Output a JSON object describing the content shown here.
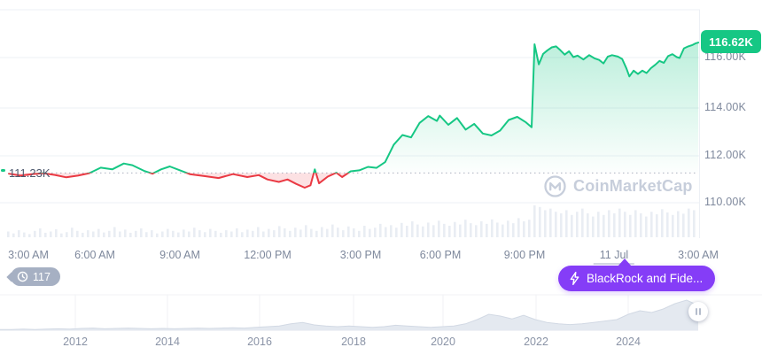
{
  "price_chart": {
    "current_price_badge": "116.62K",
    "baseline_label": "111.23K",
    "watermark": "CoinMarketCap"
  },
  "annotations": {
    "history_count": "117",
    "news_label": "BlackRock and Fide..."
  },
  "colors": {
    "up_green": "#16c784",
    "down_red": "#ea3943",
    "news_purple": "#853df7",
    "history_gray": "#a6b0c3",
    "axis_text": "#7e889c",
    "gridline": "#edf0f5"
  },
  "chart_data": {
    "type": "line",
    "title": "",
    "x_unit": "hours since 3:00 AM",
    "y_unit": "price (thousands USD)",
    "baseline": 111.23,
    "ylim": [
      109.8,
      118.0
    ],
    "y_ticks": [
      "116.00K",
      "114.00K",
      "112.00K",
      "110.00K"
    ],
    "x_ticks": [
      "3:00 AM",
      "6:00 AM",
      "9:00 AM",
      "12:00 PM",
      "3:00 PM",
      "6:00 PM",
      "9:00 PM",
      "11 Jul",
      "3:00 AM"
    ],
    "points": [
      [
        0,
        111.2
      ],
      [
        0.4,
        111.12
      ],
      [
        0.8,
        111.18
      ],
      [
        1.2,
        111.22
      ],
      [
        1.6,
        111.15
      ],
      [
        2.0,
        111.05
      ],
      [
        2.4,
        111.12
      ],
      [
        2.8,
        111.22
      ],
      [
        3.2,
        111.45
      ],
      [
        3.6,
        111.38
      ],
      [
        4.0,
        111.62
      ],
      [
        4.3,
        111.55
      ],
      [
        4.7,
        111.32
      ],
      [
        5.0,
        111.2
      ],
      [
        5.3,
        111.38
      ],
      [
        5.6,
        111.5
      ],
      [
        6.0,
        111.32
      ],
      [
        6.3,
        111.18
      ],
      [
        6.8,
        111.1
      ],
      [
        7.3,
        111.02
      ],
      [
        7.8,
        111.18
      ],
      [
        8.3,
        111.06
      ],
      [
        8.7,
        111.14
      ],
      [
        9.0,
        110.96
      ],
      [
        9.4,
        110.86
      ],
      [
        9.7,
        110.96
      ],
      [
        10.0,
        110.78
      ],
      [
        10.3,
        110.62
      ],
      [
        10.5,
        110.72
      ],
      [
        10.65,
        111.38
      ],
      [
        10.8,
        110.8
      ],
      [
        11.1,
        111.08
      ],
      [
        11.4,
        111.24
      ],
      [
        11.6,
        111.06
      ],
      [
        11.9,
        111.3
      ],
      [
        12.2,
        111.34
      ],
      [
        12.5,
        111.48
      ],
      [
        12.8,
        111.44
      ],
      [
        13.1,
        111.68
      ],
      [
        13.4,
        112.4
      ],
      [
        13.7,
        112.8
      ],
      [
        14.0,
        112.7
      ],
      [
        14.3,
        113.3
      ],
      [
        14.6,
        113.58
      ],
      [
        14.9,
        113.38
      ],
      [
        15.0,
        113.6
      ],
      [
        15.3,
        113.22
      ],
      [
        15.6,
        113.5
      ],
      [
        15.9,
        113.02
      ],
      [
        16.2,
        113.26
      ],
      [
        16.5,
        112.86
      ],
      [
        16.8,
        112.78
      ],
      [
        17.1,
        112.98
      ],
      [
        17.4,
        113.42
      ],
      [
        17.7,
        113.55
      ],
      [
        18.0,
        113.32
      ],
      [
        18.2,
        113.12
      ],
      [
        18.3,
        116.55
      ],
      [
        18.45,
        115.72
      ],
      [
        18.6,
        116.15
      ],
      [
        18.75,
        116.3
      ],
      [
        18.9,
        116.42
      ],
      [
        19.05,
        116.46
      ],
      [
        19.2,
        116.3
      ],
      [
        19.35,
        116.12
      ],
      [
        19.5,
        116.26
      ],
      [
        19.65,
        116.02
      ],
      [
        19.8,
        116.08
      ],
      [
        20.0,
        115.92
      ],
      [
        20.2,
        116.1
      ],
      [
        20.4,
        115.96
      ],
      [
        20.55,
        115.9
      ],
      [
        20.7,
        115.76
      ],
      [
        20.85,
        116.04
      ],
      [
        21.0,
        116.1
      ],
      [
        21.2,
        116.04
      ],
      [
        21.35,
        115.94
      ],
      [
        21.5,
        115.55
      ],
      [
        21.6,
        115.22
      ],
      [
        21.75,
        115.46
      ],
      [
        21.9,
        115.32
      ],
      [
        22.05,
        115.46
      ],
      [
        22.2,
        115.36
      ],
      [
        22.35,
        115.56
      ],
      [
        22.5,
        115.7
      ],
      [
        22.65,
        115.86
      ],
      [
        22.8,
        115.78
      ],
      [
        22.95,
        116.06
      ],
      [
        23.1,
        116.14
      ],
      [
        23.25,
        116.02
      ],
      [
        23.35,
        115.98
      ],
      [
        23.5,
        116.38
      ],
      [
        23.65,
        116.46
      ],
      [
        23.8,
        116.52
      ],
      [
        23.9,
        116.58
      ],
      [
        24.0,
        116.62
      ]
    ],
    "volume_bars": [
      0.18,
      0.12,
      0.22,
      0.15,
      0.1,
      0.2,
      0.28,
      0.14,
      0.18,
      0.25,
      0.12,
      0.16,
      0.3,
      0.2,
      0.14,
      0.22,
      0.18,
      0.26,
      0.15,
      0.2,
      0.32,
      0.18,
      0.24,
      0.14,
      0.2,
      0.28,
      0.16,
      0.22,
      0.12,
      0.18,
      0.26,
      0.2,
      0.15,
      0.24,
      0.18,
      0.3,
      0.22,
      0.16,
      0.26,
      0.2,
      0.14,
      0.22,
      0.18,
      0.28,
      0.16,
      0.24,
      0.2,
      0.32,
      0.18,
      0.26,
      0.22,
      0.35,
      0.28,
      0.2,
      0.3,
      0.24,
      0.38,
      0.26,
      0.2,
      0.32,
      0.26,
      0.4,
      0.3,
      0.22,
      0.34,
      0.28,
      0.2,
      0.36,
      0.26,
      0.3,
      0.42,
      0.32,
      0.38,
      0.3,
      0.45,
      0.36,
      0.5,
      0.4,
      0.34,
      0.46,
      0.38,
      0.52,
      0.42,
      0.36,
      0.48,
      0.4,
      0.55,
      0.44,
      0.38,
      0.5,
      0.42,
      0.56,
      0.46,
      0.4,
      0.52,
      0.44,
      0.6,
      0.5,
      0.55,
      1.0,
      0.95,
      0.85,
      0.9,
      0.8,
      0.75,
      0.85,
      0.7,
      0.8,
      0.9,
      0.75,
      0.65,
      0.8,
      0.7,
      0.85,
      0.75,
      0.9,
      0.8,
      0.7,
      0.85,
      0.75,
      0.65,
      0.8,
      0.72,
      0.88,
      0.78,
      0.7,
      0.82,
      0.74,
      0.9,
      0.85
    ],
    "navigator": {
      "year_ticks": [
        "2012",
        "2014",
        "2016",
        "2018",
        "2020",
        "2022",
        "2024"
      ],
      "values_norm": [
        0.02,
        0.02,
        0.03,
        0.02,
        0.03,
        0.04,
        0.03,
        0.05,
        0.06,
        0.04,
        0.05,
        0.06,
        0.05,
        0.04,
        0.05,
        0.04,
        0.05,
        0.06,
        0.05,
        0.06,
        0.07,
        0.06,
        0.08,
        0.1,
        0.12,
        0.18,
        0.22,
        0.15,
        0.12,
        0.1,
        0.12,
        0.1,
        0.08,
        0.1,
        0.14,
        0.12,
        0.1,
        0.08,
        0.1,
        0.12,
        0.18,
        0.3,
        0.45,
        0.4,
        0.32,
        0.42,
        0.3,
        0.22,
        0.18,
        0.16,
        0.18,
        0.22,
        0.26,
        0.3,
        0.45,
        0.55,
        0.5,
        0.6,
        0.75,
        0.85,
        0.7
      ]
    }
  }
}
